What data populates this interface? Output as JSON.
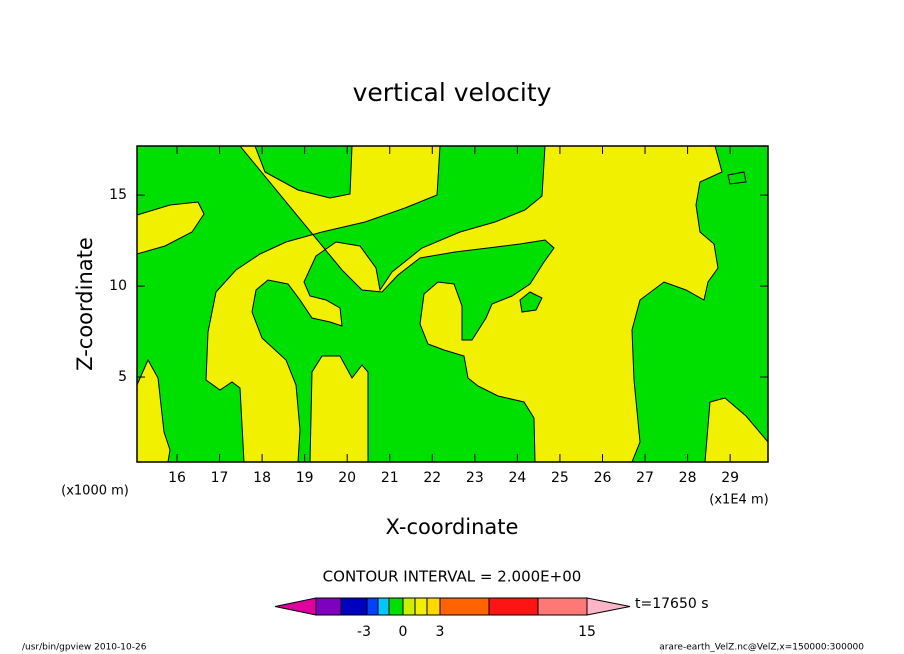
{
  "chart_data": {
    "type": "contour",
    "title": "vertical velocity",
    "x_label": "X-coordinate",
    "y_label": "Z-coordinate",
    "x_unit_left": "(x1000 m)",
    "x_unit_right": "(x1E4 m)",
    "xlim": [
      15.06,
      29.89
    ],
    "ylim": [
      0.33,
      17.7
    ],
    "xticks": [
      16,
      17,
      18,
      19,
      20,
      21,
      22,
      23,
      24,
      25,
      26,
      27,
      28,
      29
    ],
    "yticks": [
      5,
      10,
      15
    ],
    "fill_colors": {
      "negative": "#00e000",
      "positive": "#f0f000"
    },
    "contour_interval_label": "CONTOUR INTERVAL = 2.000E+00",
    "time_label": "t=17650 s",
    "colorbar": {
      "colors": [
        "#e000a0",
        "#8000c0",
        "#0000c0",
        "#0040ff",
        "#00c8ff",
        "#00e000",
        "#c8f000",
        "#f0f000",
        "#ffd800",
        "#ff6400",
        "#ff1414",
        "#ff7878",
        "#ffb4c8"
      ],
      "ticks": [
        -3,
        0,
        3,
        15
      ]
    },
    "footer_left": "/usr/bin/gpview  2010-10-26",
    "footer_right": "arare-earth_VelZ.nc@VelZ,x=150000:300000"
  }
}
